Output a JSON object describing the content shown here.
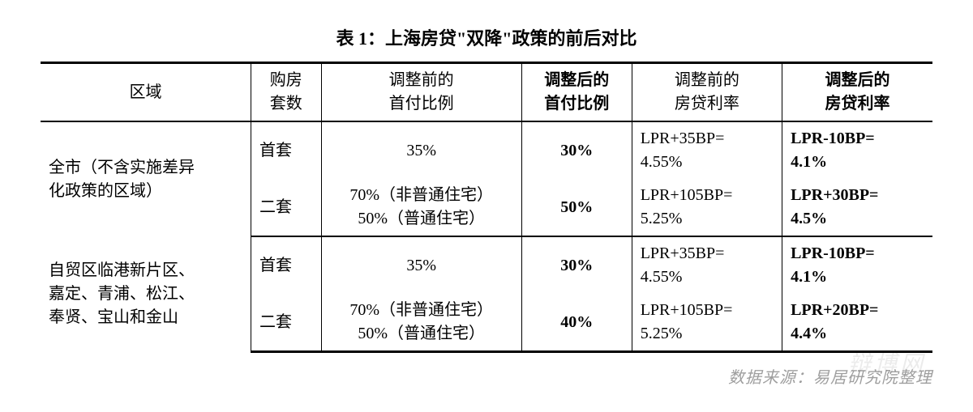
{
  "title": "表 1：上海房贷\"双降\"政策的前后对比",
  "source": "数据来源：易居研究院整理",
  "watermark": "辩博网",
  "columns": {
    "region": "区域",
    "type_l1": "购房",
    "type_l2": "套数",
    "before_dp_l1": "调整前的",
    "before_dp_l2": "首付比例",
    "after_dp_l1": "调整后的",
    "after_dp_l2": "首付比例",
    "before_rate_l1": "调整前的",
    "before_rate_l2": "房贷利率",
    "after_rate_l1": "调整后的",
    "after_rate_l2": "房贷利率"
  },
  "rows": [
    {
      "region_l1": "全市（不含实施差异",
      "region_l2": "化政策的区域）",
      "type": "首套",
      "before_dp_l1": "35%",
      "before_dp_l2": "",
      "after_dp": "30%",
      "before_rate_l1": "LPR+35BP=",
      "before_rate_l2": "4.55%",
      "after_rate_l1": "LPR-10BP=",
      "after_rate_l2": "4.1%"
    },
    {
      "type": "二套",
      "before_dp_l1": "70%（非普通住宅）",
      "before_dp_l2": "50%（普通住宅）",
      "after_dp": "50%",
      "before_rate_l1": "LPR+105BP=",
      "before_rate_l2": "5.25%",
      "after_rate_l1": "LPR+30BP=",
      "after_rate_l2": "4.5%"
    },
    {
      "region_l1": "自贸区临港新片区、",
      "region_l2": "嘉定、青浦、松江、",
      "region_l3": "奉贤、宝山和金山",
      "type": "首套",
      "before_dp_l1": "35%",
      "before_dp_l2": "",
      "after_dp": "30%",
      "before_rate_l1": "LPR+35BP=",
      "before_rate_l2": "4.55%",
      "after_rate_l1": "LPR-10BP=",
      "after_rate_l2": "4.1%"
    },
    {
      "type": "二套",
      "before_dp_l1": "70%（非普通住宅）",
      "before_dp_l2": "50%（普通住宅）",
      "after_dp": "40%",
      "before_rate_l1": "LPR+105BP=",
      "before_rate_l2": "5.25%",
      "after_rate_l1": "LPR+20BP=",
      "after_rate_l2": "4.4%"
    }
  ]
}
